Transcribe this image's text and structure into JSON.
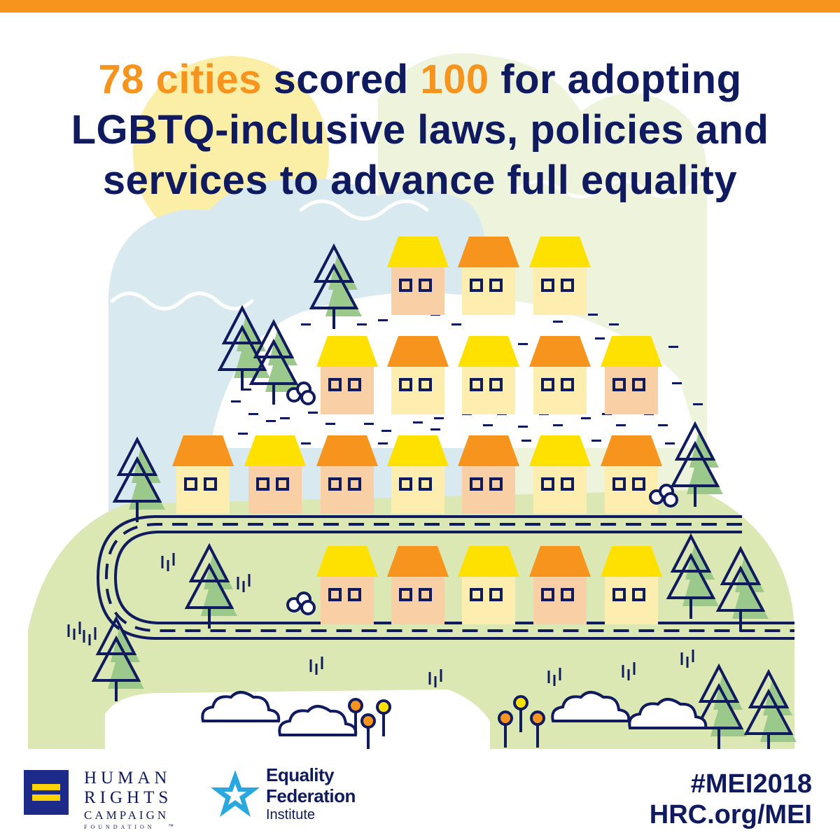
{
  "headline": {
    "line1_highlight_a": "78 cities",
    "line1_text_a": " scored ",
    "line1_highlight_b": "100",
    "line1_text_b": " for adopting",
    "line2": "LGBTQ-inclusive laws, policies and",
    "line3": "services to advance full equality"
  },
  "colors": {
    "orange": "#f7941d",
    "navy": "#101a5e",
    "green": "#dce8b4",
    "light_blue": "#d9e9f0",
    "sun_yellow": "#fbeea6",
    "house_yellow": "#ffe100",
    "house_orange": "#f7941d",
    "house_peach": "#f9cfa6",
    "house_cream": "#fdeeb0"
  },
  "footer": {
    "hrc_line1": "HUMAN",
    "hrc_line2": "RIGHTS",
    "hrc_line3": "CAMPAIGN",
    "hrc_line4": "FOUNDATION",
    "hrc_tm": "™",
    "efi_line1": "Equality",
    "efi_line2": "Federation",
    "efi_line3": "Institute",
    "hashtag": "#MEI2018",
    "url": "HRC.org/MEI"
  },
  "icons": {
    "hrc_logo": "equal-sign-logo",
    "efi_logo": "star-logo",
    "houses": "house-icon",
    "trees": "pine-tree-icon",
    "clouds": "cloud-icon",
    "flowers": "flower-icon"
  }
}
